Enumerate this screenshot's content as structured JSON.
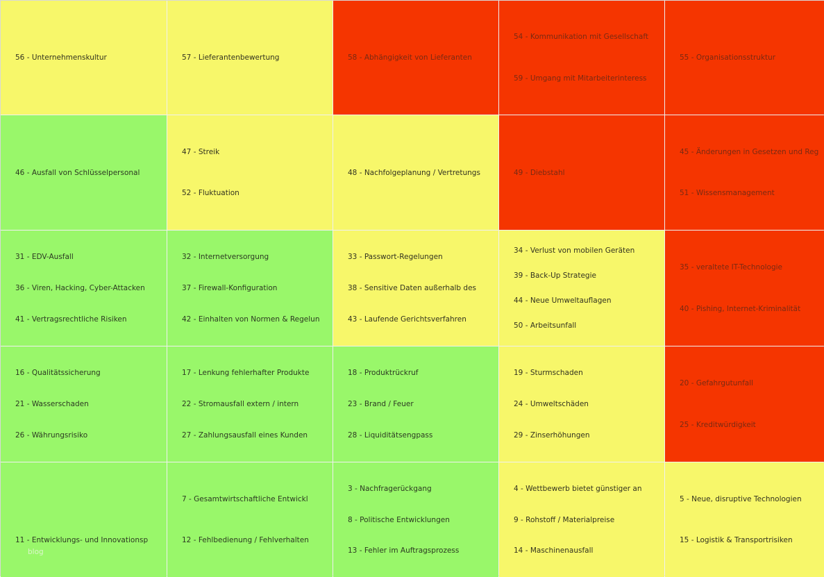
{
  "colors": {
    "yellow": "#f7f76a",
    "green": "#99f76a",
    "red": "#f53500"
  },
  "watermark": "blog",
  "rows": [
    {
      "cells": [
        {
          "color": "yellow",
          "items": [
            "56 - Unternehmenskultur"
          ]
        },
        {
          "color": "yellow",
          "items": [
            "57 - Lieferantenbewertung"
          ]
        },
        {
          "color": "red",
          "items": [
            "58 - Abhängigkeit von Lieferanten"
          ]
        },
        {
          "color": "red",
          "items": [
            "54 - Kommunikation mit Gesellschaft",
            "59 - Umgang mit Mitarbeiterinteress"
          ]
        },
        {
          "color": "red",
          "items": [
            "55 - Organisationsstruktur"
          ]
        }
      ]
    },
    {
      "cells": [
        {
          "color": "green",
          "items": [
            "46 - Ausfall von Schlüsselpersonal"
          ]
        },
        {
          "color": "yellow",
          "items": [
            "47 - Streik",
            "52 - Fluktuation"
          ]
        },
        {
          "color": "yellow",
          "items": [
            "48 - Nachfolgeplanung / Vertretungs"
          ]
        },
        {
          "color": "red",
          "items": [
            "49 - Diebstahl"
          ]
        },
        {
          "color": "red",
          "items": [
            "45 - Änderungen in Gesetzen und Reg",
            "51 - Wissensmanagement"
          ]
        }
      ]
    },
    {
      "cells": [
        {
          "color": "green",
          "items": [
            "31 - EDV-Ausfall",
            "36 - Viren, Hacking, Cyber-Attacken",
            "41 - Vertragsrechtliche Risiken"
          ]
        },
        {
          "color": "green",
          "items": [
            "32 - Internetversorgung",
            "37 - Firewall-Konfiguration",
            "42 - Einhalten von Normen & Regelun"
          ]
        },
        {
          "color": "yellow",
          "items": [
            "33 - Passwort-Regelungen",
            "38 - Sensitive Daten außerhalb des",
            "43 - Laufende Gerichtsverfahren"
          ]
        },
        {
          "color": "yellow",
          "items": [
            "34 - Verlust von mobilen Geräten",
            "39 - Back-Up Strategie",
            "44 - Neue Umweltauflagen",
            "50 - Arbeitsunfall"
          ]
        },
        {
          "color": "red",
          "items": [
            "35 - veraltete IT-Technologie",
            "40 - Pishing, Internet-Kriminalität"
          ]
        }
      ]
    },
    {
      "cells": [
        {
          "color": "green",
          "items": [
            "16 - Qualitätssicherung",
            "21 - Wasserschaden",
            "26 - Währungsrisiko"
          ]
        },
        {
          "color": "green",
          "items": [
            "17 - Lenkung fehlerhafter Produkte",
            "22 - Stromausfall extern / intern",
            "27 - Zahlungsausfall eines Kunden"
          ]
        },
        {
          "color": "green",
          "items": [
            "18 - Produktrückruf",
            "23 - Brand / Feuer",
            "28 - Liquiditätsengpass"
          ]
        },
        {
          "color": "yellow",
          "items": [
            "19 - Sturmschaden",
            "24 - Umweltschäden",
            "29 - Zinserhöhungen"
          ]
        },
        {
          "color": "red",
          "items": [
            "20 - Gefahrgutunfall",
            "25 - Kreditwürdigkeit"
          ]
        }
      ]
    },
    {
      "cells": [
        {
          "color": "green",
          "items": [
            "",
            "11 - Entwicklungs- und Innovationsp"
          ]
        },
        {
          "color": "green",
          "items": [
            "7 - Gesamtwirtschaftliche Entwickl",
            "12 - Fehlbedienung / Fehlverhalten"
          ]
        },
        {
          "color": "green",
          "items": [
            "3 - Nachfragerückgang",
            "8 - Politische Entwicklungen",
            "13 - Fehler im Auftragsprozess"
          ]
        },
        {
          "color": "yellow",
          "items": [
            "4 - Wettbewerb bietet günstiger an",
            "9 - Rohstoff / Materialpreise",
            "14 - Maschinenausfall"
          ]
        },
        {
          "color": "yellow",
          "items": [
            "5 - Neue, disruptive Technologien",
            "15 - Logistik & Transportrisiken"
          ]
        }
      ]
    }
  ]
}
